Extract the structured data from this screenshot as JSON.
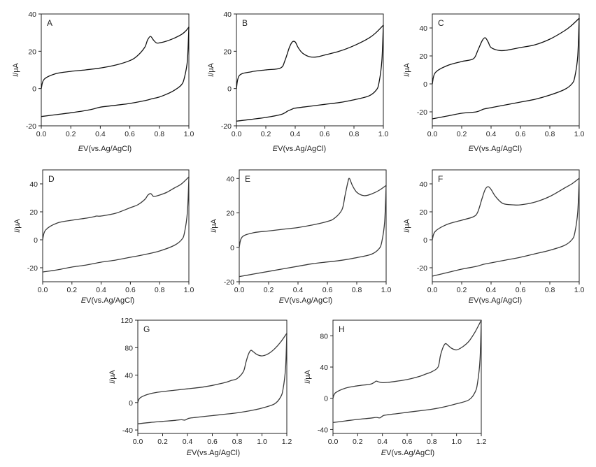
{
  "figure": {
    "xlabel_text": "V(vs.Ag/AgCl)",
    "xlabel_symbol": "E",
    "ylabel_symbol": "I",
    "ylabel_text": "/μA"
  },
  "chart_data": [
    {
      "type": "line",
      "panel_label": "A",
      "stroke": "#111111",
      "xlim": [
        0.0,
        1.0
      ],
      "ylim": [
        -20,
        40
      ],
      "xticks": [
        0.0,
        0.2,
        0.4,
        0.6,
        0.8,
        1.0
      ],
      "yticks": [
        -20,
        0,
        20,
        40
      ],
      "series": [
        {
          "x": [
            0.0,
            0.02,
            0.1,
            0.2,
            0.3,
            0.4,
            0.5,
            0.6,
            0.65,
            0.7,
            0.72,
            0.74,
            0.76,
            0.78,
            0.8,
            0.85,
            0.9,
            0.95,
            0.98,
            1.0
          ],
          "y": [
            0,
            5,
            8,
            9.2,
            10,
            11,
            12.5,
            15,
            17.5,
            22,
            26,
            28,
            26,
            24.5,
            24.5,
            25.5,
            27,
            29,
            31,
            33
          ]
        },
        {
          "x": [
            1.0,
            0.99,
            0.97,
            0.95,
            0.9,
            0.85,
            0.8,
            0.75,
            0.7,
            0.6,
            0.5,
            0.4,
            0.35,
            0.3,
            0.2,
            0.1,
            0.0
          ],
          "y": [
            33,
            15,
            6,
            2,
            -1,
            -3,
            -4.5,
            -5.5,
            -6.5,
            -8,
            -9,
            -10,
            -11,
            -11.8,
            -13,
            -14,
            -15
          ]
        }
      ]
    },
    {
      "type": "line",
      "panel_label": "B",
      "stroke": "#111111",
      "xlim": [
        0.0,
        1.0
      ],
      "ylim": [
        -20,
        40
      ],
      "xticks": [
        0.0,
        0.2,
        0.4,
        0.6,
        0.8,
        1.0
      ],
      "yticks": [
        -20,
        0,
        20,
        40
      ],
      "series": [
        {
          "x": [
            0.0,
            0.02,
            0.1,
            0.2,
            0.3,
            0.33,
            0.36,
            0.38,
            0.4,
            0.42,
            0.45,
            0.5,
            0.55,
            0.6,
            0.7,
            0.8,
            0.9,
            0.95,
            1.0
          ],
          "y": [
            0,
            7,
            9,
            10,
            11,
            15,
            22,
            25,
            25,
            22,
            19,
            17,
            17,
            18,
            20,
            23,
            27,
            30,
            34
          ]
        },
        {
          "x": [
            1.0,
            0.99,
            0.97,
            0.95,
            0.9,
            0.8,
            0.7,
            0.6,
            0.5,
            0.4,
            0.38,
            0.35,
            0.33,
            0.3,
            0.2,
            0.1,
            0.0
          ],
          "y": [
            34,
            15,
            3,
            -1,
            -4,
            -6,
            -7.5,
            -8.5,
            -9.5,
            -10.5,
            -11,
            -12,
            -13,
            -14,
            -15.5,
            -16.5,
            -17.5
          ]
        }
      ]
    },
    {
      "type": "line",
      "panel_label": "C",
      "stroke": "#111111",
      "xlim": [
        0.0,
        1.0
      ],
      "ylim": [
        -30,
        50
      ],
      "xticks": [
        0.0,
        0.2,
        0.4,
        0.6,
        0.8,
        1.0
      ],
      "yticks": [
        -20,
        0,
        20,
        40
      ],
      "series": [
        {
          "x": [
            0.0,
            0.02,
            0.1,
            0.2,
            0.28,
            0.31,
            0.34,
            0.36,
            0.38,
            0.4,
            0.45,
            0.5,
            0.6,
            0.7,
            0.8,
            0.9,
            0.95,
            1.0
          ],
          "y": [
            0,
            8,
            13,
            16,
            18,
            24,
            31,
            33,
            30,
            26,
            24,
            24,
            26,
            28,
            32,
            38,
            42,
            47
          ]
        },
        {
          "x": [
            1.0,
            0.99,
            0.97,
            0.95,
            0.9,
            0.8,
            0.7,
            0.6,
            0.5,
            0.4,
            0.35,
            0.3,
            0.2,
            0.1,
            0.0
          ],
          "y": [
            47,
            20,
            5,
            0,
            -4,
            -8,
            -11,
            -13,
            -15,
            -17,
            -18,
            -20,
            -21,
            -23,
            -25
          ]
        }
      ]
    },
    {
      "type": "line",
      "panel_label": "D",
      "stroke": "#3a3a3a",
      "xlim": [
        0.0,
        1.0
      ],
      "ylim": [
        -30,
        50
      ],
      "xticks": [
        0.0,
        0.2,
        0.4,
        0.6,
        0.8,
        1.0
      ],
      "yticks": [
        -20,
        0,
        20,
        40
      ],
      "series": [
        {
          "x": [
            0.0,
            0.02,
            0.1,
            0.2,
            0.3,
            0.35,
            0.37,
            0.4,
            0.5,
            0.6,
            0.65,
            0.7,
            0.72,
            0.74,
            0.76,
            0.8,
            0.85,
            0.9,
            0.95,
            1.0
          ],
          "y": [
            0,
            7,
            12,
            14,
            15.5,
            16.5,
            17,
            17,
            19,
            23,
            25,
            29,
            32,
            33,
            31,
            32,
            34,
            37,
            40,
            45
          ]
        },
        {
          "x": [
            1.0,
            0.99,
            0.97,
            0.95,
            0.9,
            0.8,
            0.7,
            0.6,
            0.5,
            0.4,
            0.3,
            0.2,
            0.1,
            0.0
          ],
          "y": [
            45,
            20,
            5,
            0,
            -4,
            -8,
            -10.5,
            -12.5,
            -14.5,
            -16,
            -18,
            -19.5,
            -21.5,
            -23
          ]
        }
      ]
    },
    {
      "type": "line",
      "panel_label": "E",
      "stroke": "#3a3a3a",
      "xlim": [
        0.0,
        1.0
      ],
      "ylim": [
        -20,
        45
      ],
      "xticks": [
        0.0,
        0.2,
        0.4,
        0.6,
        0.8,
        1.0
      ],
      "yticks": [
        -20,
        0,
        20,
        40
      ],
      "series": [
        {
          "x": [
            0.0,
            0.02,
            0.1,
            0.2,
            0.3,
            0.4,
            0.5,
            0.6,
            0.65,
            0.7,
            0.72,
            0.74,
            0.75,
            0.77,
            0.8,
            0.85,
            0.9,
            0.95,
            1.0
          ],
          "y": [
            0,
            6,
            8.5,
            9.5,
            10.5,
            11.5,
            13,
            15,
            17,
            22,
            30,
            38,
            40,
            36,
            32,
            30,
            31,
            33,
            36
          ]
        },
        {
          "x": [
            1.0,
            0.99,
            0.97,
            0.95,
            0.9,
            0.8,
            0.7,
            0.6,
            0.5,
            0.4,
            0.3,
            0.2,
            0.1,
            0.0
          ],
          "y": [
            36,
            15,
            3,
            -1,
            -4,
            -6,
            -7.5,
            -8.5,
            -9.5,
            -11,
            -12.5,
            -14,
            -15.5,
            -17
          ]
        }
      ]
    },
    {
      "type": "line",
      "panel_label": "F",
      "stroke": "#3a3a3a",
      "xlim": [
        0.0,
        1.0
      ],
      "ylim": [
        -30,
        50
      ],
      "xticks": [
        0.0,
        0.2,
        0.4,
        0.6,
        0.8,
        1.0
      ],
      "yticks": [
        -20,
        0,
        20,
        40
      ],
      "series": [
        {
          "x": [
            0.0,
            0.02,
            0.1,
            0.2,
            0.28,
            0.31,
            0.34,
            0.36,
            0.38,
            0.4,
            0.43,
            0.48,
            0.55,
            0.6,
            0.7,
            0.8,
            0.9,
            0.95,
            1.0
          ],
          "y": [
            0,
            6,
            11,
            14,
            16.5,
            20,
            30,
            36,
            38,
            36,
            31,
            26,
            25,
            25,
            27,
            31,
            37,
            40,
            44
          ]
        },
        {
          "x": [
            1.0,
            0.99,
            0.97,
            0.95,
            0.9,
            0.8,
            0.7,
            0.6,
            0.5,
            0.4,
            0.35,
            0.3,
            0.2,
            0.1,
            0.0
          ],
          "y": [
            44,
            20,
            5,
            0,
            -4,
            -7.5,
            -10,
            -12.5,
            -14.5,
            -16.5,
            -17.5,
            -19,
            -21,
            -23.5,
            -26
          ]
        }
      ]
    },
    {
      "type": "line",
      "panel_label": "G",
      "stroke": "#3a3a3a",
      "xlim": [
        0.0,
        1.2
      ],
      "ylim": [
        -45,
        120
      ],
      "xticks": [
        0.0,
        0.2,
        0.4,
        0.6,
        0.8,
        1.0,
        1.2
      ],
      "yticks": [
        -40,
        0,
        40,
        80,
        120
      ],
      "series": [
        {
          "x": [
            0.0,
            0.02,
            0.1,
            0.2,
            0.3,
            0.4,
            0.5,
            0.6,
            0.7,
            0.75,
            0.8,
            0.85,
            0.87,
            0.89,
            0.91,
            0.93,
            0.96,
            1.0,
            1.05,
            1.1,
            1.15,
            1.2
          ],
          "y": [
            0,
            7,
            13,
            16,
            18,
            20,
            22,
            25,
            29,
            32,
            35,
            45,
            58,
            70,
            76,
            74,
            70,
            68,
            71,
            78,
            88,
            101
          ]
        },
        {
          "x": [
            1.2,
            1.19,
            1.17,
            1.15,
            1.1,
            1.0,
            0.9,
            0.8,
            0.7,
            0.6,
            0.5,
            0.45,
            0.41,
            0.38,
            0.35,
            0.3,
            0.2,
            0.1,
            0.0
          ],
          "y": [
            101,
            50,
            20,
            8,
            -2,
            -8,
            -12,
            -15,
            -17,
            -19,
            -21,
            -22,
            -23,
            -25.5,
            -25,
            -26,
            -27.5,
            -29,
            -31
          ]
        }
      ]
    },
    {
      "type": "line",
      "panel_label": "H",
      "stroke": "#3a3a3a",
      "xlim": [
        0.0,
        1.2
      ],
      "ylim": [
        -45,
        100
      ],
      "xticks": [
        0.0,
        0.2,
        0.4,
        0.6,
        0.8,
        1.0,
        1.2
      ],
      "yticks": [
        -40,
        0,
        40,
        80
      ],
      "series": [
        {
          "x": [
            0.0,
            0.02,
            0.1,
            0.2,
            0.3,
            0.33,
            0.35,
            0.37,
            0.4,
            0.45,
            0.5,
            0.6,
            0.7,
            0.75,
            0.8,
            0.85,
            0.87,
            0.89,
            0.91,
            0.93,
            0.96,
            1.0,
            1.05,
            1.1,
            1.15,
            1.2
          ],
          "y": [
            0,
            7,
            13,
            16,
            18,
            20,
            22,
            21,
            20,
            20.5,
            21.5,
            24,
            28,
            31,
            34,
            40,
            55,
            65,
            70,
            68,
            64,
            62,
            66,
            73,
            85,
            100
          ]
        },
        {
          "x": [
            1.2,
            1.19,
            1.17,
            1.15,
            1.1,
            1.0,
            0.9,
            0.8,
            0.7,
            0.6,
            0.5,
            0.45,
            0.41,
            0.38,
            0.35,
            0.3,
            0.2,
            0.1,
            0.0
          ],
          "y": [
            100,
            50,
            20,
            8,
            -2,
            -7,
            -11,
            -14,
            -16,
            -18,
            -20,
            -21,
            -22,
            -25,
            -24.5,
            -25.5,
            -27,
            -29,
            -31
          ]
        }
      ]
    }
  ]
}
